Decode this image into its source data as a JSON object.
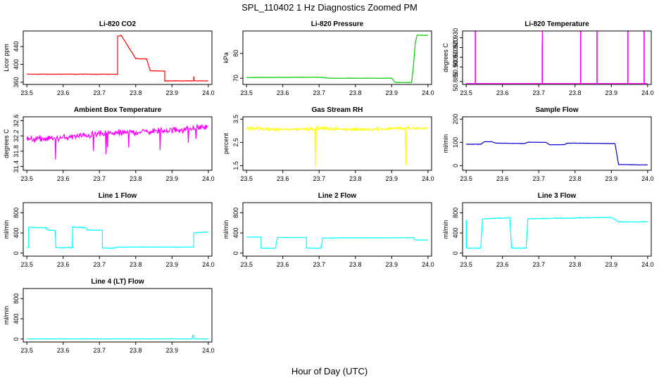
{
  "figure": {
    "title": "SPL_110402  1 Hz Diagnostics Zoomed PM",
    "xlabel": "Hour of Day (UTC)"
  },
  "chart_data": [
    {
      "type": "line",
      "title": "Li-820 CO2",
      "ylabel": "Licor ppm",
      "xlim": [
        23.49,
        24.01
      ],
      "ylim": [
        355,
        475
      ],
      "xticks": [
        "23.5",
        "23.6",
        "23.7",
        "23.8",
        "23.9",
        "24.0"
      ],
      "yticks": [
        "360",
        "400",
        "440"
      ],
      "color": "#ff0000",
      "noise": 0.8,
      "series": [
        {
          "x": [
            23.5,
            23.75,
            23.75,
            23.76,
            23.76,
            23.8,
            23.8,
            23.83,
            23.83,
            23.84,
            23.84,
            23.88,
            23.88,
            23.96,
            23.96,
            23.961,
            23.961,
            24.0
          ],
          "y": [
            378,
            378,
            463,
            465,
            465,
            413,
            413,
            412,
            412,
            386,
            386,
            385,
            363,
            363,
            372,
            372,
            363,
            363
          ]
        }
      ]
    },
    {
      "type": "line",
      "title": "Li-820 Pressure",
      "ylabel": "kPa",
      "xlim": [
        23.49,
        24.01
      ],
      "ylim": [
        67.5,
        89
      ],
      "xticks": [
        "23.5",
        "23.6",
        "23.7",
        "23.8",
        "23.9",
        "24.0"
      ],
      "yticks": [
        "70",
        "80"
      ],
      "color": "#00cc00",
      "noise": 0.12,
      "series": [
        {
          "x": [
            23.5,
            23.7,
            23.73,
            23.9,
            23.91,
            23.955,
            23.96,
            23.965,
            23.97,
            24.0
          ],
          "y": [
            70.3,
            70.4,
            70.0,
            70.0,
            68.3,
            68.3,
            75,
            84,
            87.3,
            87.3
          ]
        }
      ]
    },
    {
      "type": "line",
      "title": "Li-820 Temperature",
      "ylabel": "degrees C",
      "xlim": [
        23.49,
        24.01
      ],
      "ylim": [
        50.882,
        50.937
      ],
      "xticks": [
        "23.5",
        "23.6",
        "23.7",
        "23.8",
        "23.9",
        "24.0"
      ],
      "yticks": [
        "50.885",
        "50.900",
        "50.910",
        "50.920",
        "50.930"
      ],
      "color": "#ff00ff",
      "noise": 0,
      "series": [
        {
          "x": [
            23.5,
            23.525,
            23.525,
            23.526,
            23.526,
            23.709,
            23.709,
            23.71,
            23.71,
            23.815,
            23.815,
            23.816,
            23.816,
            23.86,
            23.86,
            23.861,
            23.861,
            23.945,
            23.945,
            23.946,
            23.946,
            23.99,
            23.99,
            23.991,
            23.991,
            24.0
          ],
          "y": [
            50.883,
            50.883,
            50.937,
            50.937,
            50.883,
            50.883,
            50.918,
            50.937,
            50.883,
            50.883,
            50.937,
            50.937,
            50.883,
            50.883,
            50.935,
            50.937,
            50.883,
            50.883,
            50.937,
            50.937,
            50.883,
            50.883,
            50.937,
            50.937,
            50.883,
            50.883
          ]
        }
      ]
    },
    {
      "type": "line",
      "title": "Ambient Box Temperature",
      "ylabel": "degrees C",
      "xlim": [
        23.49,
        24.01
      ],
      "ylim": [
        31.3,
        32.7
      ],
      "xticks": [
        "23.5",
        "23.6",
        "23.7",
        "23.8",
        "23.9",
        "24.0"
      ],
      "yticks": [
        "31.4",
        "31.8",
        "32.2",
        "32.6"
      ],
      "color": "#ff00ff",
      "noise": 0.12,
      "series": [
        {
          "x": [
            23.5,
            23.6,
            23.7,
            23.8,
            23.9,
            23.96,
            24.0
          ],
          "y": [
            32.1,
            32.15,
            32.25,
            32.3,
            32.35,
            32.4,
            32.45
          ]
        }
      ]
    },
    {
      "type": "line",
      "title": "Gas Stream RH",
      "ylabel": "percent",
      "xlim": [
        23.49,
        24.01
      ],
      "ylim": [
        1.3,
        3.6
      ],
      "xticks": [
        "23.5",
        "23.6",
        "23.7",
        "23.8",
        "23.9",
        "24.0"
      ],
      "yticks": [
        "1.5",
        "2.5",
        "3.5"
      ],
      "color": "#ffff00",
      "noise": 0.1,
      "series": [
        {
          "x": [
            23.5,
            23.6,
            23.7,
            23.8,
            23.9,
            24.0
          ],
          "y": [
            3.1,
            3.05,
            3.1,
            3.05,
            3.1,
            3.1
          ]
        }
      ]
    },
    {
      "type": "line",
      "title": "Sample Flow",
      "ylabel": "ml/min",
      "xlim": [
        23.49,
        24.01
      ],
      "ylim": [
        -20,
        210
      ],
      "xticks": [
        "23.5",
        "23.6",
        "23.7",
        "23.8",
        "23.9",
        "24.0"
      ],
      "yticks": [
        "0",
        "100",
        "200"
      ],
      "color": "#0000cc",
      "noise": 1.2,
      "series": [
        {
          "x": [
            23.5,
            23.54,
            23.55,
            23.57,
            23.58,
            23.66,
            23.67,
            23.72,
            23.73,
            23.77,
            23.78,
            23.91,
            23.92,
            24.0
          ],
          "y": [
            92,
            92,
            103,
            103,
            97,
            95,
            101,
            100,
            90,
            90,
            97,
            95,
            5,
            3
          ]
        }
      ]
    },
    {
      "type": "line",
      "title": "Line 1 Flow",
      "ylabel": "ml/min",
      "xlim": [
        23.49,
        24.01
      ],
      "ylim": [
        -60,
        1000
      ],
      "xticks": [
        "23.5",
        "23.6",
        "23.7",
        "23.8",
        "23.9",
        "24.0"
      ],
      "yticks": [
        "0",
        "400",
        "800"
      ],
      "color": "#00ffff",
      "noise": 10,
      "series": [
        {
          "x": [
            23.5,
            23.505,
            23.505,
            23.555,
            23.555,
            23.578,
            23.58,
            23.625,
            23.626,
            23.665,
            23.665,
            23.708,
            23.708,
            23.74,
            23.75,
            23.955,
            23.96,
            23.96,
            24.0
          ],
          "y": [
            110,
            110,
            510,
            500,
            460,
            450,
            110,
            110,
            520,
            500,
            460,
            450,
            100,
            100,
            120,
            120,
            120,
            400,
            420
          ]
        }
      ]
    },
    {
      "type": "line",
      "title": "Line 2 Flow",
      "ylabel": "ml/min",
      "xlim": [
        23.49,
        24.01
      ],
      "ylim": [
        -60,
        1000
      ],
      "xticks": [
        "23.5",
        "23.6",
        "23.7",
        "23.8",
        "23.9",
        "24.0"
      ],
      "yticks": [
        "0",
        "400",
        "800"
      ],
      "color": "#00ffff",
      "noise": 7,
      "series": [
        {
          "x": [
            23.5,
            23.54,
            23.54,
            23.58,
            23.585,
            23.665,
            23.665,
            23.705,
            23.71,
            23.96,
            23.965,
            24.0
          ],
          "y": [
            320,
            320,
            100,
            100,
            310,
            310,
            100,
            100,
            300,
            305,
            260,
            260
          ]
        }
      ]
    },
    {
      "type": "line",
      "title": "Line 3 Flow",
      "ylabel": "ml/min",
      "xlim": [
        23.49,
        24.01
      ],
      "ylim": [
        -60,
        1000
      ],
      "xticks": [
        "23.5",
        "23.6",
        "23.7",
        "23.8",
        "23.9",
        "24.0"
      ],
      "yticks": [
        "0",
        "400",
        "800"
      ],
      "color": "#00ffff",
      "noise": 12,
      "series": [
        {
          "x": [
            23.5,
            23.5,
            23.501,
            23.501,
            23.54,
            23.545,
            23.62,
            23.625,
            23.665,
            23.67,
            23.9,
            23.92,
            24.0
          ],
          "y": [
            100,
            640,
            640,
            100,
            100,
            680,
            700,
            100,
            100,
            680,
            710,
            620,
            620
          ]
        }
      ]
    },
    {
      "type": "line",
      "title": "Line 4 (LT) Flow",
      "ylabel": "ml/min",
      "xlim": [
        23.49,
        24.01
      ],
      "ylim": [
        -60,
        1000
      ],
      "xticks": [
        "23.5",
        "23.6",
        "23.7",
        "23.8",
        "23.9",
        "24.0"
      ],
      "yticks": [
        "0",
        "400",
        "800"
      ],
      "color": "#00ffff",
      "noise": 2,
      "series": [
        {
          "x": [
            23.5,
            23.955,
            23.957,
            23.959,
            23.962,
            24.0
          ],
          "y": [
            2,
            2,
            70,
            70,
            2,
            2
          ]
        }
      ]
    }
  ]
}
